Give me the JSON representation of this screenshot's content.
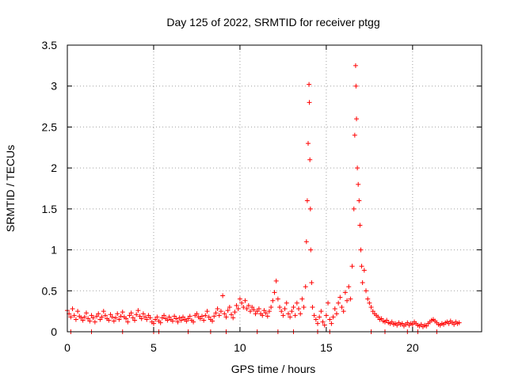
{
  "chart_data": {
    "type": "scatter",
    "title": "Day 125 of 2022, SRMTID for receiver ptgg",
    "xlabel": "GPS time / hours",
    "ylabel": "SRMTID / TECUs",
    "xlim": [
      0,
      24
    ],
    "ylim": [
      0,
      3.5
    ],
    "xticks": [
      0,
      5,
      10,
      15,
      20
    ],
    "yticks": [
      0,
      0.5,
      1,
      1.5,
      2,
      2.5,
      3,
      3.5
    ],
    "xtick_labels": [
      "0",
      "5",
      "10",
      "15",
      "20"
    ],
    "ytick_labels": [
      "0",
      "0.5",
      "1",
      "1.5",
      "2",
      "2.5",
      "3",
      "3.5"
    ],
    "grid": true,
    "marker": "+",
    "series": [
      {
        "name": "SRMTID",
        "color": "#ff0000",
        "points": [
          [
            0.0,
            0.26
          ],
          [
            0.1,
            0.22
          ],
          [
            0.2,
            0.18
          ],
          [
            0.3,
            0.28
          ],
          [
            0.4,
            0.2
          ],
          [
            0.5,
            0.15
          ],
          [
            0.6,
            0.25
          ],
          [
            0.7,
            0.19
          ],
          [
            0.8,
            0.17
          ],
          [
            0.9,
            0.14
          ],
          [
            1.0,
            0.18
          ],
          [
            1.1,
            0.23
          ],
          [
            1.2,
            0.16
          ],
          [
            1.3,
            0.13
          ],
          [
            1.4,
            0.2
          ],
          [
            1.5,
            0.17
          ],
          [
            1.6,
            0.12
          ],
          [
            1.7,
            0.19
          ],
          [
            1.8,
            0.22
          ],
          [
            1.9,
            0.15
          ],
          [
            2.0,
            0.18
          ],
          [
            2.1,
            0.25
          ],
          [
            2.2,
            0.2
          ],
          [
            2.3,
            0.16
          ],
          [
            2.4,
            0.14
          ],
          [
            2.5,
            0.21
          ],
          [
            2.6,
            0.18
          ],
          [
            2.7,
            0.13
          ],
          [
            2.8,
            0.17
          ],
          [
            2.9,
            0.22
          ],
          [
            3.0,
            0.15
          ],
          [
            3.1,
            0.19
          ],
          [
            3.2,
            0.24
          ],
          [
            3.3,
            0.18
          ],
          [
            3.4,
            0.16
          ],
          [
            3.5,
            0.12
          ],
          [
            3.6,
            0.2
          ],
          [
            3.7,
            0.23
          ],
          [
            3.8,
            0.17
          ],
          [
            3.9,
            0.14
          ],
          [
            4.0,
            0.21
          ],
          [
            4.1,
            0.26
          ],
          [
            4.2,
            0.19
          ],
          [
            4.3,
            0.16
          ],
          [
            4.4,
            0.22
          ],
          [
            4.5,
            0.18
          ],
          [
            4.6,
            0.15
          ],
          [
            4.7,
            0.2
          ],
          [
            4.8,
            0.17
          ],
          [
            4.9,
            0.12
          ],
          [
            5.0,
            0.1
          ],
          [
            5.1,
            0.15
          ],
          [
            5.2,
            0.18
          ],
          [
            5.3,
            0.13
          ],
          [
            5.4,
            0.11
          ],
          [
            5.5,
            0.17
          ],
          [
            5.6,
            0.2
          ],
          [
            5.7,
            0.16
          ],
          [
            5.8,
            0.14
          ],
          [
            5.9,
            0.18
          ],
          [
            6.0,
            0.15
          ],
          [
            6.1,
            0.13
          ],
          [
            6.2,
            0.19
          ],
          [
            6.3,
            0.16
          ],
          [
            6.4,
            0.12
          ],
          [
            6.5,
            0.17
          ],
          [
            6.6,
            0.14
          ],
          [
            6.7,
            0.18
          ],
          [
            6.8,
            0.15
          ],
          [
            6.9,
            0.13
          ],
          [
            7.0,
            0.16
          ],
          [
            7.1,
            0.19
          ],
          [
            7.2,
            0.14
          ],
          [
            7.3,
            0.12
          ],
          [
            7.4,
            0.2
          ],
          [
            7.5,
            0.22
          ],
          [
            7.6,
            0.18
          ],
          [
            7.7,
            0.16
          ],
          [
            7.8,
            0.19
          ],
          [
            7.9,
            0.14
          ],
          [
            8.0,
            0.2
          ],
          [
            8.1,
            0.25
          ],
          [
            8.2,
            0.18
          ],
          [
            8.3,
            0.15
          ],
          [
            8.4,
            0.13
          ],
          [
            8.5,
            0.19
          ],
          [
            8.6,
            0.23
          ],
          [
            8.7,
            0.28
          ],
          [
            8.8,
            0.2
          ],
          [
            8.9,
            0.25
          ],
          [
            9.0,
            0.44
          ],
          [
            9.1,
            0.22
          ],
          [
            9.2,
            0.18
          ],
          [
            9.3,
            0.26
          ],
          [
            9.4,
            0.3
          ],
          [
            9.5,
            0.21
          ],
          [
            9.6,
            0.17
          ],
          [
            9.7,
            0.24
          ],
          [
            9.8,
            0.32
          ],
          [
            9.9,
            0.28
          ],
          [
            10.0,
            0.4
          ],
          [
            10.1,
            0.35
          ],
          [
            10.2,
            0.3
          ],
          [
            10.3,
            0.38
          ],
          [
            10.4,
            0.28
          ],
          [
            10.5,
            0.32
          ],
          [
            10.6,
            0.25
          ],
          [
            10.7,
            0.3
          ],
          [
            10.8,
            0.27
          ],
          [
            10.9,
            0.22
          ],
          [
            11.0,
            0.25
          ],
          [
            11.1,
            0.28
          ],
          [
            11.2,
            0.22
          ],
          [
            11.3,
            0.2
          ],
          [
            11.4,
            0.26
          ],
          [
            11.5,
            0.23
          ],
          [
            11.6,
            0.19
          ],
          [
            11.7,
            0.25
          ],
          [
            11.8,
            0.3
          ],
          [
            11.9,
            0.38
          ],
          [
            12.0,
            0.48
          ],
          [
            12.1,
            0.62
          ],
          [
            12.2,
            0.4
          ],
          [
            12.3,
            0.3
          ],
          [
            12.4,
            0.25
          ],
          [
            12.5,
            0.2
          ],
          [
            12.6,
            0.28
          ],
          [
            12.7,
            0.35
          ],
          [
            12.8,
            0.22
          ],
          [
            12.9,
            0.18
          ],
          [
            13.0,
            0.25
          ],
          [
            13.1,
            0.3
          ],
          [
            13.2,
            0.2
          ],
          [
            13.3,
            0.35
          ],
          [
            13.4,
            0.28
          ],
          [
            13.5,
            0.22
          ],
          [
            13.6,
            0.4
          ],
          [
            13.7,
            0.3
          ],
          [
            13.8,
            0.55
          ],
          [
            13.85,
            1.1
          ],
          [
            13.9,
            1.6
          ],
          [
            13.95,
            2.3
          ],
          [
            14.0,
            3.02
          ],
          [
            14.02,
            2.8
          ],
          [
            14.05,
            2.1
          ],
          [
            14.08,
            1.5
          ],
          [
            14.1,
            1.0
          ],
          [
            14.15,
            0.6
          ],
          [
            14.2,
            0.3
          ],
          [
            14.3,
            0.2
          ],
          [
            14.4,
            0.15
          ],
          [
            14.5,
            0.1
          ],
          [
            14.6,
            0.18
          ],
          [
            14.7,
            0.25
          ],
          [
            14.8,
            0.12
          ],
          [
            14.9,
            0.08
          ],
          [
            15.0,
            0.2
          ],
          [
            15.1,
            0.35
          ],
          [
            15.2,
            0.15
          ],
          [
            15.3,
            0.1
          ],
          [
            15.4,
            0.18
          ],
          [
            15.5,
            0.28
          ],
          [
            15.6,
            0.22
          ],
          [
            15.7,
            0.35
          ],
          [
            15.8,
            0.42
          ],
          [
            15.9,
            0.3
          ],
          [
            16.0,
            0.25
          ],
          [
            16.1,
            0.48
          ],
          [
            16.2,
            0.38
          ],
          [
            16.3,
            0.55
          ],
          [
            16.4,
            0.4
          ],
          [
            16.5,
            0.8
          ],
          [
            16.6,
            1.5
          ],
          [
            16.65,
            2.4
          ],
          [
            16.7,
            3.25
          ],
          [
            16.72,
            3.0
          ],
          [
            16.75,
            2.6
          ],
          [
            16.8,
            2.0
          ],
          [
            16.85,
            1.8
          ],
          [
            16.9,
            1.6
          ],
          [
            16.95,
            1.3
          ],
          [
            17.0,
            1.0
          ],
          [
            17.05,
            0.8
          ],
          [
            17.1,
            0.6
          ],
          [
            17.2,
            0.75
          ],
          [
            17.3,
            0.5
          ],
          [
            17.4,
            0.4
          ],
          [
            17.5,
            0.35
          ],
          [
            17.6,
            0.3
          ],
          [
            17.7,
            0.25
          ],
          [
            17.8,
            0.22
          ],
          [
            17.9,
            0.2
          ],
          [
            18.0,
            0.18
          ],
          [
            18.1,
            0.15
          ],
          [
            18.2,
            0.16
          ],
          [
            18.3,
            0.13
          ],
          [
            18.4,
            0.12
          ],
          [
            18.5,
            0.14
          ],
          [
            18.6,
            0.11
          ],
          [
            18.7,
            0.1
          ],
          [
            18.8,
            0.12
          ],
          [
            18.9,
            0.09
          ],
          [
            19.0,
            0.1
          ],
          [
            19.1,
            0.08
          ],
          [
            19.2,
            0.11
          ],
          [
            19.3,
            0.09
          ],
          [
            19.4,
            0.1
          ],
          [
            19.5,
            0.07
          ],
          [
            19.6,
            0.09
          ],
          [
            19.7,
            0.11
          ],
          [
            19.8,
            0.08
          ],
          [
            19.9,
            0.1
          ],
          [
            20.0,
            0.09
          ],
          [
            20.1,
            0.12
          ],
          [
            20.2,
            0.1
          ],
          [
            20.3,
            0.08
          ],
          [
            20.4,
            0.07
          ],
          [
            20.5,
            0.09
          ],
          [
            20.6,
            0.06
          ],
          [
            20.7,
            0.08
          ],
          [
            20.8,
            0.07
          ],
          [
            20.9,
            0.1
          ],
          [
            21.0,
            0.12
          ],
          [
            21.1,
            0.14
          ],
          [
            21.2,
            0.15
          ],
          [
            21.3,
            0.13
          ],
          [
            21.4,
            0.11
          ],
          [
            21.5,
            0.09
          ],
          [
            21.6,
            0.08
          ],
          [
            21.7,
            0.1
          ],
          [
            21.8,
            0.09
          ],
          [
            21.9,
            0.11
          ],
          [
            22.0,
            0.12
          ],
          [
            22.1,
            0.1
          ],
          [
            22.2,
            0.13
          ],
          [
            22.3,
            0.11
          ],
          [
            22.4,
            0.09
          ],
          [
            22.5,
            0.12
          ],
          [
            22.6,
            0.1
          ],
          [
            22.7,
            0.11
          ],
          [
            0.2,
            0.0
          ],
          [
            1.4,
            0.0
          ],
          [
            3.2,
            0.0
          ],
          [
            5.0,
            0.0
          ],
          [
            5.3,
            0.0
          ],
          [
            7.0,
            0.0
          ],
          [
            8.3,
            0.0
          ],
          [
            9.2,
            0.0
          ],
          [
            11.0,
            0.0
          ],
          [
            12.2,
            0.0
          ],
          [
            13.1,
            0.0
          ],
          [
            14.5,
            0.0
          ],
          [
            15.2,
            0.0
          ],
          [
            17.6,
            0.0
          ],
          [
            18.4,
            0.0
          ],
          [
            19.7,
            0.0
          ],
          [
            20.3,
            0.0
          ],
          [
            21.4,
            0.0
          ]
        ]
      }
    ]
  }
}
